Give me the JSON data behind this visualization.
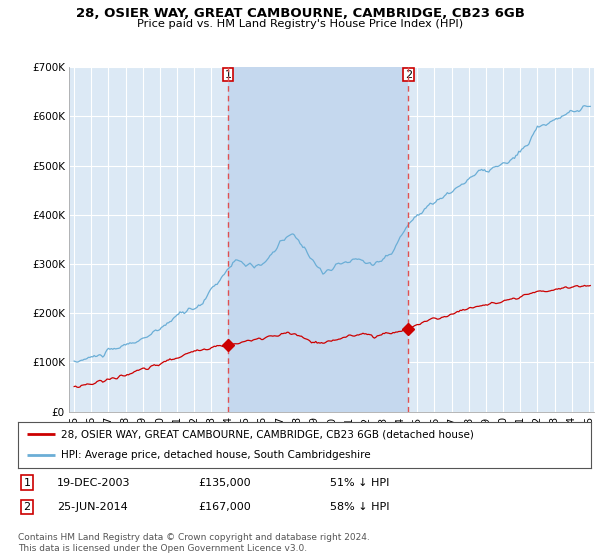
{
  "title1": "28, OSIER WAY, GREAT CAMBOURNE, CAMBRIDGE, CB23 6GB",
  "title2": "Price paid vs. HM Land Registry's House Price Index (HPI)",
  "legend_line1": "28, OSIER WAY, GREAT CAMBOURNE, CAMBRIDGE, CB23 6GB (detached house)",
  "legend_line2": "HPI: Average price, detached house, South Cambridgeshire",
  "transaction1_date": "19-DEC-2003",
  "transaction1_price": "£135,000",
  "transaction1_hpi": "51% ↓ HPI",
  "transaction2_date": "25-JUN-2014",
  "transaction2_price": "£167,000",
  "transaction2_hpi": "58% ↓ HPI",
  "footer": "Contains HM Land Registry data © Crown copyright and database right 2024.\nThis data is licensed under the Open Government Licence v3.0.",
  "vline1_x": 2003.96,
  "vline2_x": 2014.48,
  "dot1_x": 2003.96,
  "dot1_y": 135000,
  "dot2_x": 2014.48,
  "dot2_y": 167000,
  "hpi_color": "#6baed6",
  "price_color": "#cc0000",
  "vline_color": "#e05050",
  "background_color": "#ffffff",
  "plot_bg_color": "#dce9f5",
  "shade_color": "#c5d8ee",
  "grid_color": "#ffffff",
  "ylim": [
    0,
    700000
  ],
  "xlim": [
    1994.7,
    2025.3
  ],
  "yticks": [
    0,
    100000,
    200000,
    300000,
    400000,
    500000,
    600000,
    700000
  ],
  "ytick_labels": [
    "£0",
    "£100K",
    "£200K",
    "£300K",
    "£400K",
    "£500K",
    "£600K",
    "£700K"
  ],
  "xticks": [
    1995,
    1996,
    1997,
    1998,
    1999,
    2000,
    2001,
    2002,
    2003,
    2004,
    2005,
    2006,
    2007,
    2008,
    2009,
    2010,
    2011,
    2012,
    2013,
    2014,
    2015,
    2016,
    2017,
    2018,
    2019,
    2020,
    2021,
    2022,
    2023,
    2024,
    2025
  ],
  "xtick_labels": [
    "95",
    "96",
    "97",
    "98",
    "99",
    "00",
    "01",
    "02",
    "03",
    "04",
    "05",
    "06",
    "07",
    "08",
    "09",
    "10",
    "11",
    "12",
    "13",
    "14",
    "15",
    "16",
    "17",
    "18",
    "19",
    "20",
    "21",
    "22",
    "23",
    "24",
    "25"
  ]
}
